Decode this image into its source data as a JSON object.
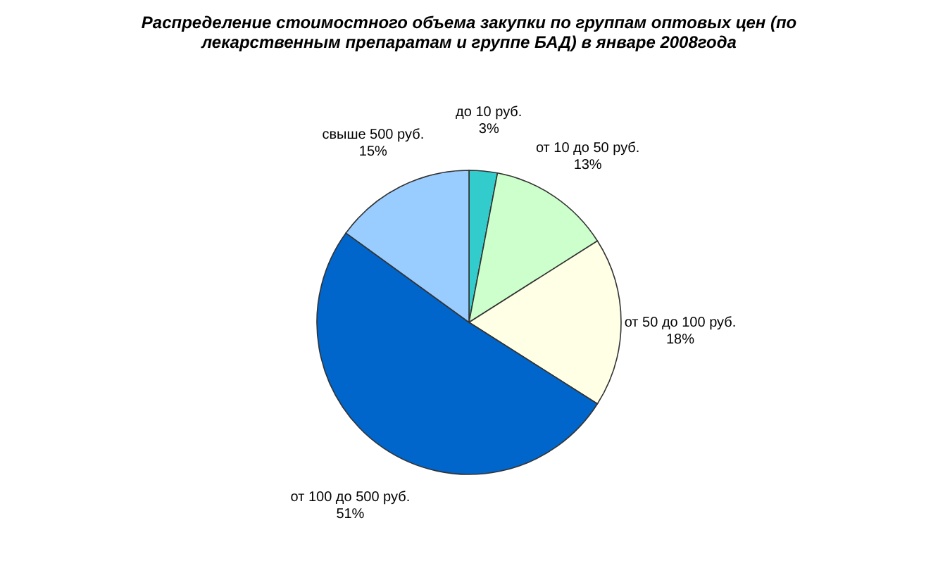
{
  "chart_data": {
    "type": "pie",
    "title": "Распределение стоимостного объема закупки по группам оптовых цен (по лекарственным препаратам и группе БАД) в январе 2008года",
    "categories": [
      "до 10 руб.",
      "от 10 до 50 руб.",
      "от 50 до 100 руб.",
      "от 100 до 500 руб.",
      "свыше 500 руб."
    ],
    "values": [
      3,
      13,
      18,
      51,
      15
    ],
    "value_labels": [
      "3%",
      "13%",
      "18%",
      "51%",
      "15%"
    ],
    "colors": [
      "#33cccc",
      "#ccffcc",
      "#ffffe6",
      "#0066cc",
      "#99ccff"
    ],
    "legend": false
  }
}
